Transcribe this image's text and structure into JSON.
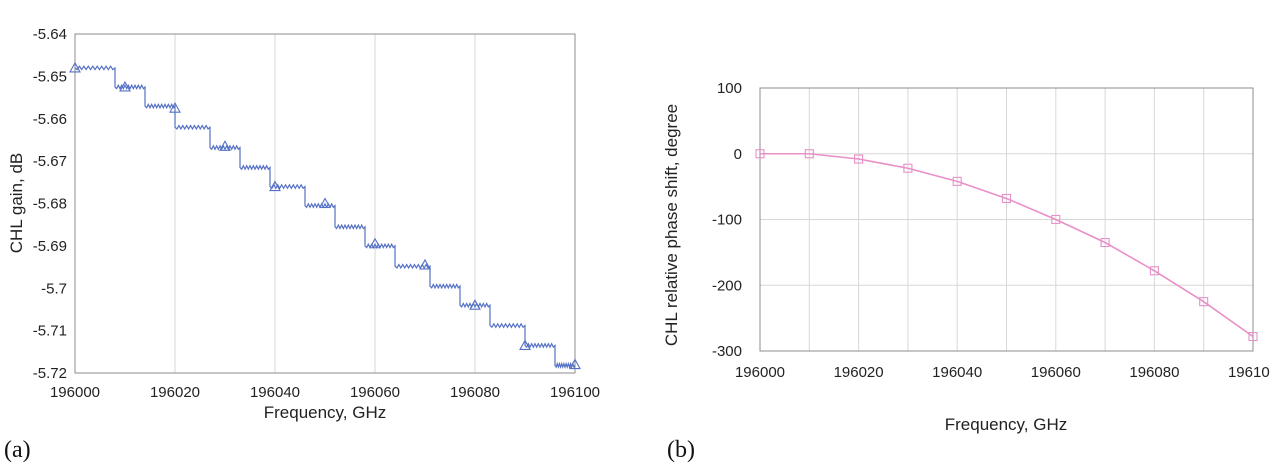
{
  "chart_data": [
    {
      "type": "line",
      "panel_label": "(a)",
      "title": "",
      "xlabel": "Frequency, GHz",
      "ylabel": "CHL gain, dB",
      "xlim": [
        196000,
        196100
      ],
      "ylim": [
        -5.72,
        -5.64
      ],
      "xticks": [
        196000,
        196020,
        196040,
        196060,
        196080,
        196100
      ],
      "yticks": [
        -5.64,
        -5.65,
        -5.66,
        -5.67,
        -5.68,
        -5.69,
        -5.7,
        -5.71,
        -5.72
      ],
      "xtick_labels": [
        "196000",
        "196020",
        "196040",
        "196060",
        "196080",
        "196100"
      ],
      "ytick_labels": [
        "-5.64",
        "-5.65",
        "-5.66",
        "-5.67",
        "-5.68",
        "-5.69",
        "-5.7",
        "-5.71",
        "-5.72"
      ],
      "grid": "vertical",
      "step_series": {
        "step_starts": [
          196000,
          196008,
          196014,
          196020,
          196027,
          196033,
          196039,
          196046,
          196052,
          196058,
          196064,
          196071,
          196077,
          196083,
          196090,
          196096
        ],
        "end_x": 196100,
        "levels": [
          -5.648,
          -5.6525,
          -5.657,
          -5.662,
          -5.6668,
          -5.6715,
          -5.676,
          -5.6805,
          -5.6855,
          -5.69,
          -5.6948,
          -5.6995,
          -5.704,
          -5.7088,
          -5.7135,
          -5.7182
        ]
      },
      "markers": {
        "marker": "triangle",
        "x": [
          196000,
          196010,
          196020,
          196030,
          196040,
          196050,
          196060,
          196070,
          196080,
          196090,
          196100
        ],
        "y": [
          -5.648,
          -5.6525,
          -5.6575,
          -5.6665,
          -5.676,
          -5.68,
          -5.6895,
          -5.6945,
          -5.704,
          -5.7135,
          -5.718
        ]
      },
      "color": "#5470c6"
    },
    {
      "type": "line",
      "panel_label": "(b)",
      "title": "",
      "xlabel": "Frequency, GHz",
      "ylabel": "CHL relative phase shift, degree",
      "xlim": [
        196000,
        196100
      ],
      "ylim": [
        -300,
        100
      ],
      "xticks": [
        196000,
        196020,
        196040,
        196060,
        196080,
        196100
      ],
      "yticks": [
        100,
        0,
        -100,
        -200,
        -300
      ],
      "xtick_labels": [
        "196000",
        "196020",
        "196040",
        "196060",
        "196080",
        "196100"
      ],
      "ytick_labels": [
        "100",
        "0",
        "-100",
        "-200",
        "-300"
      ],
      "grid": "both",
      "x": [
        196000,
        196010,
        196020,
        196030,
        196040,
        196050,
        196060,
        196070,
        196080,
        196090,
        196100
      ],
      "y": [
        0,
        0,
        -8,
        -22,
        -42,
        -68,
        -100,
        -135,
        -178,
        -225,
        -278
      ],
      "marker": "square",
      "color": "#e890c8"
    }
  ]
}
